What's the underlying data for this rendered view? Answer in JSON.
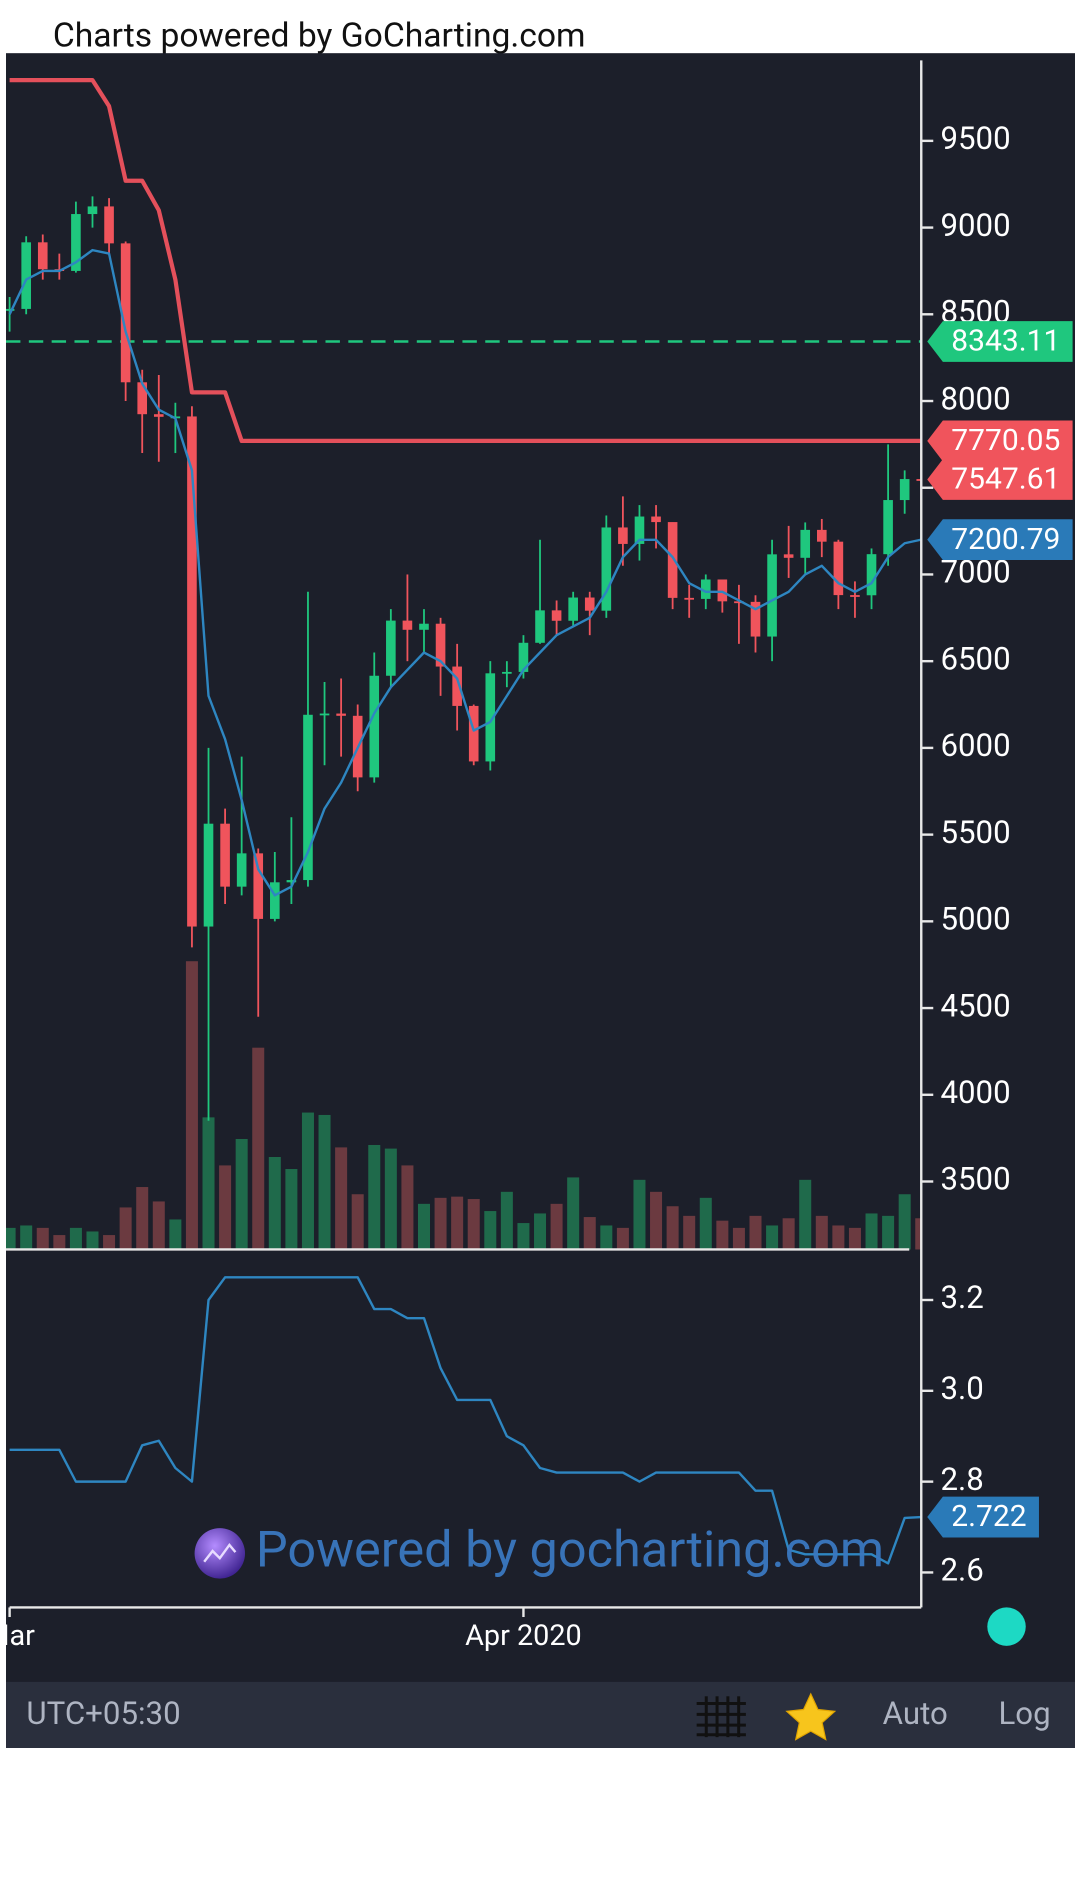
{
  "chart_data": {
    "type": "candlestick",
    "title": "Charts powered by GoCharting.com",
    "watermark": "Powered by gocharting.com",
    "categories": [
      "Mar",
      null,
      null,
      null,
      null,
      null,
      null,
      null,
      null,
      null,
      null,
      null,
      null,
      null,
      null,
      null,
      null,
      null,
      null,
      null,
      null,
      null,
      null,
      null,
      null,
      null,
      null,
      null,
      null,
      null,
      null,
      "Apr 2020",
      null,
      null,
      null,
      null,
      null,
      null,
      null,
      null,
      null,
      null,
      null,
      null,
      null,
      null,
      null,
      null,
      null,
      null,
      null,
      null,
      null,
      null,
      null,
      null
    ],
    "open": [
      8520,
      8531,
      8915,
      8760,
      8750,
      9078,
      9122,
      8909,
      8108,
      7924,
      7909,
      7911,
      4970,
      5563,
      5200,
      5392,
      5014,
      5225,
      5238,
      6191,
      6198,
      6185,
      5830,
      6416,
      6734,
      6681,
      6716,
      6469,
      6242,
      5922,
      6430,
      6438,
      6606,
      6793,
      6733,
      6867,
      6791,
      7271,
      7176,
      7334,
      7302,
      6865,
      6859,
      6971,
      6845,
      6842,
      6642,
      7116,
      7096,
      7257,
      7189,
      6881,
      6880,
      7117,
      7429,
      7550
    ],
    "high": [
      8600,
      8950,
      8960,
      8850,
      9150,
      9180,
      9170,
      8920,
      8180,
      8150,
      7990,
      7970,
      6000,
      5650,
      5950,
      5420,
      5400,
      5600,
      6900,
      6380,
      6400,
      6250,
      6550,
      6800,
      7000,
      6800,
      6750,
      6600,
      6250,
      6500,
      6500,
      6650,
      7200,
      6850,
      6900,
      6900,
      7340,
      7450,
      7400,
      7400,
      7300,
      6940,
      7000,
      6960,
      6940,
      6880,
      7200,
      7280,
      7300,
      7320,
      7200,
      6960,
      7150,
      7750,
      7600,
      7700
    ],
    "low": [
      8400,
      8500,
      8700,
      8700,
      8740,
      9000,
      8850,
      8000,
      7700,
      7650,
      7700,
      4850,
      3850,
      5100,
      5150,
      4450,
      5000,
      5100,
      5200,
      5900,
      5950,
      5750,
      5800,
      6350,
      6500,
      6550,
      6300,
      6100,
      5900,
      5870,
      6350,
      6400,
      6600,
      6650,
      6700,
      6650,
      6750,
      7050,
      7080,
      7150,
      6800,
      6750,
      6800,
      6780,
      6600,
      6550,
      6500,
      6980,
      7000,
      7100,
      6800,
      6750,
      6800,
      7050,
      7350,
      7400
    ],
    "close": [
      8531,
      8915,
      8760,
      8750,
      9078,
      9122,
      8909,
      8108,
      7924,
      7909,
      7911,
      4970,
      5563,
      5200,
      5392,
      5014,
      5225,
      5238,
      6191,
      6198,
      6185,
      5830,
      6416,
      6734,
      6681,
      6716,
      6469,
      6242,
      5922,
      6430,
      6438,
      6606,
      6793,
      6733,
      6867,
      6791,
      7271,
      7176,
      7334,
      7302,
      6865,
      6859,
      6971,
      6845,
      6842,
      6642,
      7116,
      7096,
      7257,
      7189,
      6881,
      6880,
      7117,
      7429,
      7550,
      7547.61
    ],
    "volume": [
      18,
      20,
      18,
      12,
      18,
      15,
      12,
      35,
      52,
      40,
      25,
      240,
      110,
      70,
      92,
      168,
      77,
      67,
      114,
      112,
      85,
      46,
      87,
      84,
      70,
      38,
      43,
      44,
      42,
      32,
      48,
      22,
      30,
      38,
      60,
      27,
      20,
      18,
      58,
      48,
      36,
      28,
      43,
      24,
      18,
      28,
      20,
      26,
      58,
      28,
      20,
      18,
      30,
      28,
      46,
      26
    ],
    "up_color": "#1fc77e",
    "down_color": "#f0545c",
    "volume_up_color": "#1f6a4b",
    "volume_down_color": "#6b3a40",
    "moving_average": {
      "color": "#2e86c1",
      "values": [
        8500,
        8700,
        8750,
        8750,
        8800,
        8870,
        8850,
        8400,
        8100,
        7950,
        7900,
        7600,
        6300,
        6050,
        5700,
        5300,
        5150,
        5200,
        5400,
        5650,
        5800,
        6000,
        6200,
        6350,
        6450,
        6550,
        6500,
        6400,
        6100,
        6150,
        6300,
        6450,
        6550,
        6650,
        6700,
        6750,
        6900,
        7100,
        7200,
        7200,
        7100,
        6950,
        6900,
        6900,
        6850,
        6800,
        6850,
        6900,
        7000,
        7050,
        6950,
        6900,
        6950,
        7100,
        7180,
        7200.79
      ]
    },
    "upper_band": {
      "color": "#e4505b",
      "values": [
        9850,
        9850,
        9850,
        9850,
        9850,
        9850,
        9700,
        9270,
        9270,
        9100,
        8700,
        8050,
        8050,
        8050,
        7770,
        7770,
        7770,
        7770,
        7770,
        7770,
        7770,
        7770,
        7770,
        7770,
        7770,
        7770,
        7770,
        7770,
        7770,
        7770,
        7770,
        7770,
        7770,
        7770,
        7770,
        7770,
        7770,
        7770,
        7770,
        7770,
        7770,
        7770,
        7770,
        7770,
        7770,
        7770,
        7770,
        7770,
        7770,
        7770,
        7770,
        7770,
        7770,
        7770,
        7770,
        7770.05
      ]
    },
    "price_line": {
      "value": 8343.11,
      "color": "#1fc77e"
    },
    "ylim": [
      3108,
      9964
    ],
    "yticks": [
      3500,
      4000,
      4500,
      5000,
      5500,
      6000,
      6500,
      7000,
      7500,
      8000,
      8500,
      9000,
      9500
    ],
    "indicator": {
      "color": "#2e86c1",
      "values": [
        2.87,
        2.87,
        2.87,
        2.87,
        2.8,
        2.8,
        2.8,
        2.8,
        2.88,
        2.89,
        2.83,
        2.8,
        3.2,
        3.25,
        3.25,
        3.25,
        3.25,
        3.25,
        3.25,
        3.25,
        3.25,
        3.25,
        3.18,
        3.18,
        3.16,
        3.16,
        3.05,
        2.98,
        2.98,
        2.98,
        2.9,
        2.88,
        2.83,
        2.82,
        2.82,
        2.82,
        2.82,
        2.82,
        2.8,
        2.82,
        2.82,
        2.82,
        2.82,
        2.82,
        2.82,
        2.78,
        2.78,
        2.65,
        2.64,
        2.64,
        2.64,
        2.64,
        2.64,
        2.62,
        2.72,
        2.722
      ],
      "ylim": [
        2.523,
        3.298
      ],
      "yticks": [
        2.6,
        2.8,
        {
          "value": 3,
          "label": "3.0"
        },
        3.2
      ]
    },
    "footer": {
      "timezone": "UTC+05:30",
      "buttons": [
        "Auto",
        "Log"
      ]
    }
  }
}
